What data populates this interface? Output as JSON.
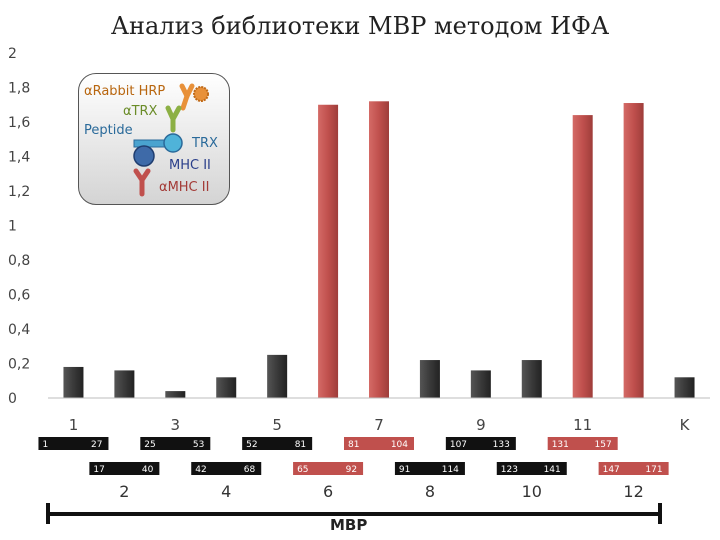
{
  "chart_data": {
    "type": "bar",
    "title": "Анализ библиотеки МВР методом ИФА",
    "ylim": [
      0,
      2
    ],
    "yticks": [
      "0",
      "0,2",
      "0,4",
      "0,6",
      "0,8",
      "1",
      "1,2",
      "1,4",
      "1,6",
      "1,8",
      "2"
    ],
    "categories": [
      "1",
      "2",
      "3",
      "4",
      "5",
      "6",
      "7",
      "8",
      "9",
      "10",
      "11",
      "12",
      "K"
    ],
    "x_tick_labels": [
      "1",
      "3",
      "5",
      "7",
      "9",
      "11",
      "K"
    ],
    "values": [
      0.18,
      0.16,
      0.04,
      0.12,
      0.25,
      1.7,
      1.72,
      0.22,
      0.16,
      0.22,
      1.64,
      1.71,
      0.12
    ],
    "highlight": [
      false,
      false,
      false,
      false,
      false,
      true,
      true,
      false,
      false,
      false,
      true,
      true,
      false
    ],
    "colors": {
      "normal": "#3a3a3a",
      "highlight": "#c0504d"
    },
    "segments": [
      {
        "start": "1",
        "end": "27",
        "row": 1,
        "highlight": false
      },
      {
        "start": "17",
        "end": "40",
        "row": 2,
        "highlight": false
      },
      {
        "start": "25",
        "end": "53",
        "row": 1,
        "highlight": false
      },
      {
        "start": "42",
        "end": "68",
        "row": 2,
        "highlight": false
      },
      {
        "start": "52",
        "end": "81",
        "row": 1,
        "highlight": false
      },
      {
        "start": "65",
        "end": "92",
        "row": 2,
        "highlight": true
      },
      {
        "start": "81",
        "end": "104",
        "row": 1,
        "highlight": true
      },
      {
        "start": "91",
        "end": "114",
        "row": 2,
        "highlight": false
      },
      {
        "start": "107",
        "end": "133",
        "row": 1,
        "highlight": false
      },
      {
        "start": "123",
        "end": "141",
        "row": 2,
        "highlight": false
      },
      {
        "start": "131",
        "end": "157",
        "row": 1,
        "highlight": true
      },
      {
        "start": "147",
        "end": "171",
        "row": 2,
        "highlight": true
      }
    ],
    "even_labels": [
      "2",
      "4",
      "6",
      "8",
      "10",
      "12"
    ],
    "range_label": "MBP",
    "legend": {
      "rabbit": "αRabbit HRP",
      "trx_ab": "αTRX",
      "peptide": "Peptide",
      "trx": "TRX",
      "mhc": "MHC II",
      "mhc_ab": "αMHC II"
    }
  }
}
